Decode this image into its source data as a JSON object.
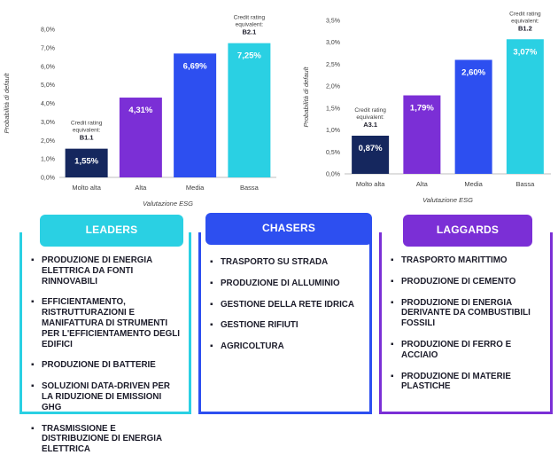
{
  "chart_data": [
    {
      "type": "bar",
      "categories": [
        "Molto alta",
        "Alta",
        "Media",
        "Bassa"
      ],
      "values": [
        1.55,
        4.31,
        6.69,
        7.25
      ],
      "value_labels": [
        "1,55%",
        "4,31%",
        "6,69%",
        "7,25%"
      ],
      "bar_colors": [
        "#15275e",
        "#7b2fd6",
        "#2d4ff0",
        "#2ad0e3"
      ],
      "ylabel": "Probabilità di default",
      "xlabel": "Valutazione ESG",
      "ylim": [
        0,
        8
      ],
      "yticks": [
        "0,0%",
        "1,0%",
        "2,0%",
        "3,0%",
        "4,0%",
        "5,0%",
        "6,0%",
        "7,0%",
        "8,0%"
      ],
      "grid": false,
      "annotations": [
        {
          "category": "Molto alta",
          "lines": [
            "Credit rating",
            "equivalent:"
          ],
          "rating": "B1.1"
        },
        {
          "category": "Bassa",
          "lines": [
            "Credit rating",
            "equivalent:"
          ],
          "rating": "B2.1"
        }
      ]
    },
    {
      "type": "bar",
      "categories": [
        "Molto alta",
        "Alta",
        "Media",
        "Bassa"
      ],
      "values": [
        0.87,
        1.79,
        2.6,
        3.07
      ],
      "value_labels": [
        "0,87%",
        "1,79%",
        "2,60%",
        "3,07%"
      ],
      "bar_colors": [
        "#15275e",
        "#7b2fd6",
        "#2d4ff0",
        "#2ad0e3"
      ],
      "ylabel": "Probabilità di default",
      "xlabel": "Valutazione ESG",
      "ylim": [
        0,
        3.5
      ],
      "yticks": [
        "0,0%",
        "0,5%",
        "1,0%",
        "1,5%",
        "2,0%",
        "2,5%",
        "3,0%",
        "3,5%"
      ],
      "grid": false,
      "annotations": [
        {
          "category": "Molto alta",
          "lines": [
            "Credit rating",
            "equivalent:"
          ],
          "rating": "A3.1"
        },
        {
          "category": "Bassa",
          "lines": [
            "Credit rating",
            "equivalent:"
          ],
          "rating": "B1.2"
        }
      ]
    }
  ],
  "panels": {
    "leaders": {
      "title": "LEADERS",
      "color": "#2ad0e3",
      "items": [
        "PRODUZIONE DI ENERGIA ELETTRICA DA FONTI RINNOVABILI",
        "EFFICIENTAMENTO, RISTRUTTURAZIONI E MANIFATTURA DI STRUMENTI PER L'EFFICIENTAMENTO DEGLI EDIFICI",
        "PRODUZIONE DI BATTERIE",
        "SOLUZIONI DATA-DRIVEN PER LA RIDUZIONE DI EMISSIONI GHG",
        "TRASMISSIONE E DISTRIBUZIONE DI ENERGIA ELETTRICA"
      ]
    },
    "chasers": {
      "title": "CHASERS",
      "color": "#2d4ff0",
      "items": [
        "TRASPORTO SU STRADA",
        "PRODUZIONE DI ALLUMINIO",
        "GESTIONE DELLA RETE IDRICA",
        "GESTIONE RIFIUTI",
        "AGRICOLTURA"
      ]
    },
    "laggards": {
      "title": "LAGGARDS",
      "color": "#7b2fd6",
      "items": [
        "TRASPORTO MARITTIMO",
        "PRODUZIONE DI CEMENTO",
        "PRODUZIONE DI ENERGIA DERIVANTE DA COMBUSTIBILI FOSSILI",
        "PRODUZIONE DI FERRO E ACCIAIO",
        "PRODUZIONE DI MATERIE PLASTICHE"
      ]
    }
  }
}
